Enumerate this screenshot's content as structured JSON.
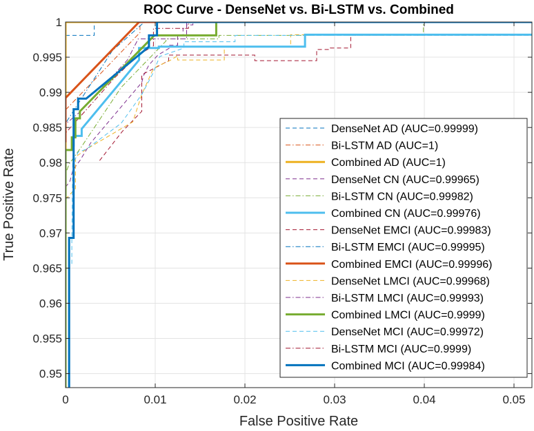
{
  "chart_data": {
    "type": "line",
    "title": "ROC Curve - DenseNet vs. Bi-LSTM vs. Combined",
    "xlabel": "False Positive Rate",
    "ylabel": "True Positive Rate",
    "xlim": [
      0,
      0.052
    ],
    "ylim": [
      0.948,
      1.0
    ],
    "xticks": [
      0,
      0.01,
      0.02,
      0.03,
      0.04,
      0.05
    ],
    "xtick_labels": [
      "0",
      "0.01",
      "0.02",
      "0.03",
      "0.04",
      "0.05"
    ],
    "yticks": [
      0.95,
      0.955,
      0.96,
      0.965,
      0.97,
      0.975,
      0.98,
      0.985,
      0.99,
      0.995,
      1
    ],
    "ytick_labels": [
      "0.95",
      "0.955",
      "0.96",
      "0.965",
      "0.97",
      "0.975",
      "0.98",
      "0.985",
      "0.99",
      "0.995",
      "1"
    ],
    "grid": true,
    "legend_position": "bottom-right",
    "series": [
      {
        "name": "DenseNet AD (AUC=0.99999)",
        "color": "#0072BD",
        "style": "dashed",
        "width": "thin",
        "x": [
          0,
          0,
          0.0003,
          0.0003,
          0.0032,
          0.0032,
          0.052
        ],
        "y": [
          0.9981,
          0.9981,
          0.9981,
          0.9981,
          0.9981,
          1.0,
          1.0
        ]
      },
      {
        "name": "Bi-LSTM AD (AUC=1)",
        "color": "#D95319",
        "style": "dashdot",
        "width": "thin",
        "x": [
          0,
          0,
          0.0083,
          0.0083,
          0.052
        ],
        "y": [
          0.9875,
          0.9875,
          0.9985,
          1.0,
          1.0
        ]
      },
      {
        "name": "Combined AD (AUC=1)",
        "color": "#EDB120",
        "style": "solid",
        "width": "thick",
        "x": [
          0,
          0,
          0.052
        ],
        "y": [
          0.948,
          1.0,
          1.0
        ]
      },
      {
        "name": "DenseNet CN (AUC=0.99965)",
        "color": "#7E2F8E",
        "style": "dashed",
        "width": "thin",
        "x": [
          0,
          0.0005,
          0.0008,
          0.0016,
          0.0028,
          0.0085,
          0.0087,
          0.0093,
          0.0103,
          0.0116,
          0.0116,
          0.0125,
          0.0125,
          0.0131,
          0.0131,
          0.0135,
          0.0135,
          0.0142,
          0.0142,
          0.052
        ],
        "y": [
          0.9765,
          0.9774,
          0.9789,
          0.9803,
          0.9828,
          0.9914,
          0.9924,
          0.9939,
          0.9953,
          0.9963,
          0.9967,
          0.9967,
          0.9981,
          0.9981,
          0.9991,
          0.9991,
          0.9996,
          0.9996,
          1.0,
          1.0
        ]
      },
      {
        "name": "Bi-LSTM CN (AUC=0.99982)",
        "color": "#77AC30",
        "style": "dashdot",
        "width": "thin",
        "x": [
          0,
          0,
          0.0004,
          0.0018,
          0.0062,
          0.0112,
          0.0112,
          0.0171,
          0.0171,
          0.0399,
          0.0399,
          0.052
        ],
        "y": [
          0.9676,
          0.9784,
          0.9798,
          0.9823,
          0.9907,
          0.9973,
          0.9976,
          0.9976,
          0.9981,
          0.9981,
          1.0,
          1.0
        ]
      },
      {
        "name": "Combined CN (AUC=0.99976)",
        "color": "#4DBEEE",
        "style": "solid",
        "width": "thick",
        "x": [
          0.0009,
          0.0009,
          0.0018,
          0.0018,
          0.0082,
          0.0082,
          0.0104,
          0.0104,
          0.0267,
          0.0267,
          0.052
        ],
        "y": [
          0.9823,
          0.9838,
          0.9838,
          0.9848,
          0.9946,
          0.9963,
          0.9963,
          0.9965,
          0.9965,
          0.9982,
          0.9982
        ]
      },
      {
        "name": "DenseNet EMCI (AUC=0.99983)",
        "color": "#A2142F",
        "style": "dashed",
        "width": "thin",
        "x": [
          0.0038,
          0.0063,
          0.0085,
          0.0085,
          0.0115,
          0.0115,
          0.0211,
          0.0211,
          0.028,
          0.028,
          0.0295,
          0.0295,
          0.0318,
          0.0318,
          0.052
        ],
        "y": [
          0.9803,
          0.9844,
          0.9873,
          0.9925,
          0.9945,
          0.9953,
          0.9953,
          0.9945,
          0.9945,
          0.9961,
          0.9961,
          0.9963,
          0.9963,
          0.9981,
          0.9981
        ]
      },
      {
        "name": "Bi-LSTM EMCI (AUC=0.99995)",
        "color": "#0072BD",
        "style": "dashdot",
        "width": "thin",
        "x": [
          0,
          0,
          0.0052,
          0.0087,
          0.0087,
          0.052
        ],
        "y": [
          0.9802,
          0.9856,
          0.9959,
          0.9999,
          1.0,
          1.0
        ]
      },
      {
        "name": "Combined EMCI (AUC=0.99996)",
        "color": "#D95319",
        "style": "solid",
        "width": "thick",
        "x": [
          0,
          0,
          0.0082,
          0.0082,
          0.052
        ],
        "y": [
          0.9829,
          0.9892,
          1.0,
          1.0,
          1.0
        ]
      },
      {
        "name": "DenseNet LMCI (AUC=0.99968)",
        "color": "#EDB120",
        "style": "dashed",
        "width": "thin",
        "x": [
          0,
          0.0011,
          0.0011,
          0.0023,
          0.0075,
          0.0085,
          0.0097,
          0.0102,
          0.0116,
          0.0125,
          0.0125,
          0.0177,
          0.0177,
          0.0251,
          0.0251,
          0.052
        ],
        "y": [
          0.9748,
          0.9763,
          0.9808,
          0.9819,
          0.9858,
          0.9897,
          0.9931,
          0.9937,
          0.9945,
          0.9952,
          0.9946,
          0.9946,
          0.9965,
          0.9965,
          0.9982,
          0.9982
        ]
      },
      {
        "name": "Bi-LSTM LMCI (AUC=0.99993)",
        "color": "#7E2F8E",
        "style": "dashdot",
        "width": "thin",
        "x": [
          0,
          0,
          0.0015,
          0.0069,
          0.0081,
          0.0135,
          0.0135,
          0.052
        ],
        "y": [
          0.9735,
          0.9855,
          0.9871,
          0.9946,
          0.9976,
          0.9976,
          1.0,
          1.0
        ]
      },
      {
        "name": "Combined LMCI (AUC=0.9999)",
        "color": "#77AC30",
        "style": "solid",
        "width": "thick",
        "x": [
          0,
          0,
          0.0007,
          0.0007,
          0.0011,
          0.0011,
          0.0016,
          0.0016,
          0.0099,
          0.0099,
          0.0168,
          0.0168,
          0.052
        ],
        "y": [
          0.948,
          0.9818,
          0.9818,
          0.9836,
          0.9836,
          0.9863,
          0.9863,
          0.9873,
          0.9981,
          0.9981,
          0.9981,
          1.0,
          1.0
        ]
      },
      {
        "name": "DenseNet MCI (AUC=0.99972)",
        "color": "#4DBEEE",
        "style": "dashed",
        "width": "thin",
        "x": [
          0.0007,
          0.0007,
          0.0008,
          0.0012,
          0.0014,
          0.0023,
          0.0062,
          0.0085,
          0.0097,
          0.0105,
          0.0132,
          0.0132,
          0.0189,
          0.0189,
          0.052
        ],
        "y": [
          0.9656,
          0.9688,
          0.9799,
          0.9808,
          0.9815,
          0.9819,
          0.9856,
          0.9897,
          0.9926,
          0.9951,
          0.9963,
          0.9972,
          0.9972,
          0.9981,
          0.9981
        ]
      },
      {
        "name": "Bi-LSTM MCI (AUC=0.9999)",
        "color": "#A2142F",
        "style": "dashdot",
        "width": "thin",
        "x": [
          0,
          0,
          0.0055,
          0.0081,
          0.0098,
          0.0098,
          0.0137,
          0.0137,
          0.052
        ],
        "y": [
          0.9805,
          0.9842,
          0.9921,
          0.9953,
          0.9966,
          0.9991,
          0.9991,
          1.0,
          1.0
        ]
      },
      {
        "name": "Combined MCI (AUC=0.99984)",
        "color": "#0072BD",
        "style": "solid",
        "width": "thick",
        "x": [
          0.0004,
          0.0004,
          0.0009,
          0.0009,
          0.0014,
          0.0014,
          0.0023,
          0.0093,
          0.0093,
          0.0102,
          0.0102,
          0.052
        ],
        "y": [
          0.948,
          0.9693,
          0.9693,
          0.9876,
          0.9876,
          0.9891,
          0.9891,
          0.9965,
          0.9981,
          0.9981,
          1.0,
          1.0
        ]
      }
    ]
  }
}
